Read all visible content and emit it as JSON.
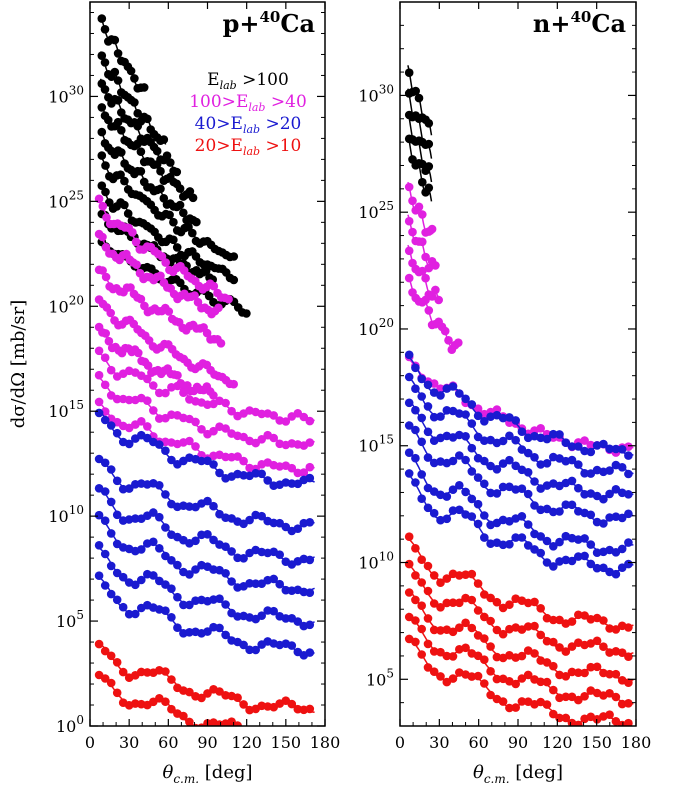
{
  "chart_data": [
    {
      "type": "scatter",
      "panel": "left",
      "title": "p+40Ca",
      "title_parts": {
        "base": "p+",
        "sup": "40",
        "elem": "Ca"
      },
      "xlabel": "θc.m. [deg]",
      "xlabel_parts": {
        "base": "θ",
        "sub": "c.m.",
        "rest": " [deg]"
      },
      "ylabel": "dσ/dΩ [mb/sr]",
      "scale": "log",
      "xlim": [
        0,
        180
      ],
      "ylim_exponent": [
        0,
        34.5
      ],
      "x_ticks": [
        0,
        30,
        60,
        90,
        120,
        150,
        180
      ],
      "x_tick_labels": [
        "0",
        "30",
        "60",
        "90",
        "120",
        "150",
        "180"
      ],
      "y_ticks_exponent": [
        0,
        5,
        10,
        15,
        20,
        25,
        30
      ],
      "y_tick_labels": [
        {
          "base": "10",
          "sup": "0"
        },
        {
          "base": "10",
          "sup": "5"
        },
        {
          "base": "10",
          "sup": "10"
        },
        {
          "base": "10",
          "sup": "15"
        },
        {
          "base": "10",
          "sup": "20"
        },
        {
          "base": "10",
          "sup": "25"
        },
        {
          "base": "10",
          "sup": "30"
        }
      ],
      "legend": {
        "placement": "top-right",
        "entries": [
          {
            "text": "Elab >100",
            "parts": {
              "pre": "",
              "sub_base": "E",
              "sub": "lab",
              "post": " >100"
            },
            "color": "#000000"
          },
          {
            "text": "100>Elab >40",
            "parts": {
              "pre": "100>",
              "sub_base": "E",
              "sub": "lab",
              "post": " >40"
            },
            "color": "#e020e0"
          },
          {
            "text": "40>Elab >20",
            "parts": {
              "pre": "40>",
              "sub_base": "E",
              "sub": "lab",
              "post": " >20"
            },
            "color": "#1a1ad0"
          },
          {
            "text": "20>Elab >10",
            "parts": {
              "pre": "20>",
              "sub_base": "E",
              "sub": "lab",
              "post": " >10"
            },
            "color": "#ee1111"
          }
        ]
      },
      "series": [
        {
          "color": "#000000",
          "offset": 33.6,
          "xmin": 8,
          "xmax": 42,
          "decay": 0.115,
          "amp": 0.22,
          "period": 11
        },
        {
          "color": "#000000",
          "offset": 31.9,
          "xmin": 8,
          "xmax": 58,
          "decay": 0.1,
          "amp": 0.25,
          "period": 12
        },
        {
          "color": "#000000",
          "offset": 30.6,
          "xmin": 8,
          "xmax": 68,
          "decay": 0.085,
          "amp": 0.25,
          "period": 13
        },
        {
          "color": "#000000",
          "offset": 29.4,
          "xmin": 8,
          "xmax": 80,
          "decay": 0.075,
          "amp": 0.25,
          "period": 14
        },
        {
          "color": "#000000",
          "offset": 28.1,
          "xmin": 8,
          "xmax": 82,
          "decay": 0.07,
          "amp": 0.25,
          "period": 15
        },
        {
          "color": "#000000",
          "offset": 26.9,
          "xmin": 8,
          "xmax": 112,
          "decay": 0.062,
          "amp": 0.25,
          "period": 17
        },
        {
          "color": "#000000",
          "offset": 25.5,
          "xmin": 8,
          "xmax": 112,
          "decay": 0.055,
          "amp": 0.25,
          "period": 18
        },
        {
          "color": "#000000",
          "offset": 24.3,
          "xmin": 8,
          "xmax": 95,
          "decay": 0.045,
          "amp": 0.2,
          "period": 20
        },
        {
          "color": "#000000",
          "offset": 23.0,
          "xmin": 8,
          "xmax": 122,
          "decay": 0.04,
          "amp": 0.25,
          "period": 20
        },
        {
          "color": "#e020e0",
          "offset": 24.8,
          "xmin": 6,
          "xmax": 108,
          "decay": 0.06,
          "amp": 0.3,
          "period": 22
        },
        {
          "color": "#e020e0",
          "offset": 23.2,
          "xmin": 6,
          "xmax": 100,
          "decay": 0.05,
          "amp": 0.3,
          "period": 24
        },
        {
          "color": "#e020e0",
          "offset": 21.6,
          "xmin": 6,
          "xmax": 102,
          "decay": 0.045,
          "amp": 0.3,
          "period": 26
        },
        {
          "color": "#e020e0",
          "offset": 20.2,
          "xmin": 6,
          "xmax": 112,
          "decay": 0.05,
          "amp": 0.3,
          "period": 28
        },
        {
          "color": "#e020e0",
          "offset": 18.8,
          "xmin": 6,
          "xmax": 95,
          "decay": 0.045,
          "amp": 0.3,
          "period": 28
        },
        {
          "color": "#e020e0",
          "offset": 17.5,
          "xmin": 6,
          "xmax": 172,
          "decay": 0.032,
          "amp": 0.35,
          "period": 31
        },
        {
          "color": "#e020e0",
          "offset": 16.3,
          "xmin": 6,
          "xmax": 172,
          "decay": 0.032,
          "amp": 0.35,
          "period": 33
        },
        {
          "color": "#e020e0",
          "offset": 15.1,
          "xmin": 6,
          "xmax": 172,
          "decay": 0.032,
          "amp": 0.35,
          "period": 34
        },
        {
          "color": "#1a1ad0",
          "offset": 14.6,
          "xmin": 6,
          "xmax": 172,
          "decay": 0.034,
          "amp": 0.45,
          "period": 40
        },
        {
          "color": "#1a1ad0",
          "offset": 12.4,
          "xmin": 6,
          "xmax": 172,
          "decay": 0.032,
          "amp": 0.5,
          "period": 42
        },
        {
          "color": "#1a1ad0",
          "offset": 10.9,
          "xmin": 6,
          "xmax": 172,
          "decay": 0.033,
          "amp": 0.55,
          "period": 43
        },
        {
          "color": "#1a1ad0",
          "offset": 9.5,
          "xmin": 6,
          "xmax": 172,
          "decay": 0.033,
          "amp": 0.55,
          "period": 44
        },
        {
          "color": "#1a1ad0",
          "offset": 8.0,
          "xmin": 6,
          "xmax": 172,
          "decay": 0.033,
          "amp": 0.55,
          "period": 45
        },
        {
          "color": "#1a1ad0",
          "offset": 6.6,
          "xmin": 6,
          "xmax": 172,
          "decay": 0.033,
          "amp": 0.55,
          "period": 46
        },
        {
          "color": "#ee1111",
          "offset": 3.5,
          "xmin": 6,
          "xmax": 172,
          "decay": 0.03,
          "amp": 0.5,
          "period": 48
        },
        {
          "color": "#ee1111",
          "offset": 2.1,
          "xmin": 6,
          "xmax": 172,
          "decay": 0.03,
          "amp": 0.5,
          "period": 50
        }
      ]
    },
    {
      "type": "scatter",
      "panel": "right",
      "title": "n+40Ca",
      "title_parts": {
        "base": "n+",
        "sup": "40",
        "elem": "Ca"
      },
      "xlabel": "θc.m. [deg]",
      "xlabel_parts": {
        "base": "θ",
        "sub": "c.m.",
        "rest": " [deg]"
      },
      "ylabel": "",
      "scale": "log",
      "xlim": [
        0,
        180
      ],
      "ylim_exponent": [
        3,
        34
      ],
      "x_ticks": [
        0,
        30,
        60,
        90,
        120,
        150,
        180
      ],
      "x_tick_labels": [
        "0",
        "30",
        "60",
        "90",
        "120",
        "150",
        "180"
      ],
      "y_ticks_exponent": [
        5,
        10,
        15,
        20,
        25,
        30
      ],
      "y_tick_labels": [
        {
          "base": "10",
          "sup": "5"
        },
        {
          "base": "10",
          "sup": "10"
        },
        {
          "base": "10",
          "sup": "15"
        },
        {
          "base": "10",
          "sup": "20"
        },
        {
          "base": "10",
          "sup": "25"
        },
        {
          "base": "10",
          "sup": "30"
        }
      ],
      "series": [
        {
          "color": "#000000",
          "offset": 31.0,
          "xmin": 6,
          "xmax": 24,
          "decay": 0.16,
          "amp": 0.3,
          "period": 8
        },
        {
          "color": "#000000",
          "offset": 30.0,
          "xmin": 6,
          "xmax": 24,
          "decay": 0.16,
          "amp": 0.3,
          "period": 8
        },
        {
          "color": "#000000",
          "offset": 29.0,
          "xmin": 6,
          "xmax": 24,
          "decay": 0.16,
          "amp": 0.3,
          "period": 8
        },
        {
          "color": "#000000",
          "offset": 28.0,
          "xmin": 6,
          "xmax": 24,
          "decay": 0.15,
          "amp": 0.3,
          "period": 8
        },
        {
          "color": "#e020e0",
          "offset": 26.0,
          "xmin": 6,
          "xmax": 25,
          "decay": 0.12,
          "amp": 0.3,
          "period": 9
        },
        {
          "color": "#e020e0",
          "offset": 24.6,
          "xmin": 6,
          "xmax": 27,
          "decay": 0.11,
          "amp": 0.3,
          "period": 10
        },
        {
          "color": "#e020e0",
          "offset": 23.3,
          "xmin": 6,
          "xmax": 30,
          "decay": 0.1,
          "amp": 0.3,
          "period": 11
        },
        {
          "color": "#e020e0",
          "offset": 22.0,
          "xmin": 6,
          "xmax": 45,
          "decay": 0.085,
          "amp": 0.3,
          "period": 13
        },
        {
          "color": "#e020e0",
          "offset": 18.5,
          "xmin": 6,
          "xmax": 178,
          "decay": 0.04,
          "amp": 0.25,
          "period": 35
        },
        {
          "color": "#1a1ad0",
          "offset": 18.4,
          "xmin": 6,
          "xmax": 178,
          "decay": 0.04,
          "amp": 0.45,
          "period": 38
        },
        {
          "color": "#1a1ad0",
          "offset": 17.5,
          "xmin": 6,
          "xmax": 178,
          "decay": 0.04,
          "amp": 0.5,
          "period": 40
        },
        {
          "color": "#1a1ad0",
          "offset": 16.5,
          "xmin": 6,
          "xmax": 178,
          "decay": 0.04,
          "amp": 0.5,
          "period": 41
        },
        {
          "color": "#1a1ad0",
          "offset": 15.5,
          "xmin": 6,
          "xmax": 178,
          "decay": 0.04,
          "amp": 0.55,
          "period": 42
        },
        {
          "color": "#1a1ad0",
          "offset": 14.2,
          "xmin": 6,
          "xmax": 178,
          "decay": 0.04,
          "amp": 0.6,
          "period": 43
        },
        {
          "color": "#1a1ad0",
          "offset": 13.2,
          "xmin": 6,
          "xmax": 178,
          "decay": 0.038,
          "amp": 0.6,
          "period": 44
        },
        {
          "color": "#ee1111",
          "offset": 10.5,
          "xmin": 6,
          "xmax": 178,
          "decay": 0.035,
          "amp": 0.55,
          "period": 46
        },
        {
          "color": "#ee1111",
          "offset": 9.4,
          "xmin": 6,
          "xmax": 178,
          "decay": 0.035,
          "amp": 0.55,
          "period": 47
        },
        {
          "color": "#ee1111",
          "offset": 8.3,
          "xmin": 6,
          "xmax": 178,
          "decay": 0.035,
          "amp": 0.55,
          "period": 48
        },
        {
          "color": "#ee1111",
          "offset": 7.3,
          "xmin": 6,
          "xmax": 178,
          "decay": 0.035,
          "amp": 0.55,
          "period": 49
        },
        {
          "color": "#ee1111",
          "offset": 6.3,
          "xmin": 6,
          "xmax": 178,
          "decay": 0.035,
          "amp": 0.55,
          "period": 50
        }
      ]
    }
  ]
}
